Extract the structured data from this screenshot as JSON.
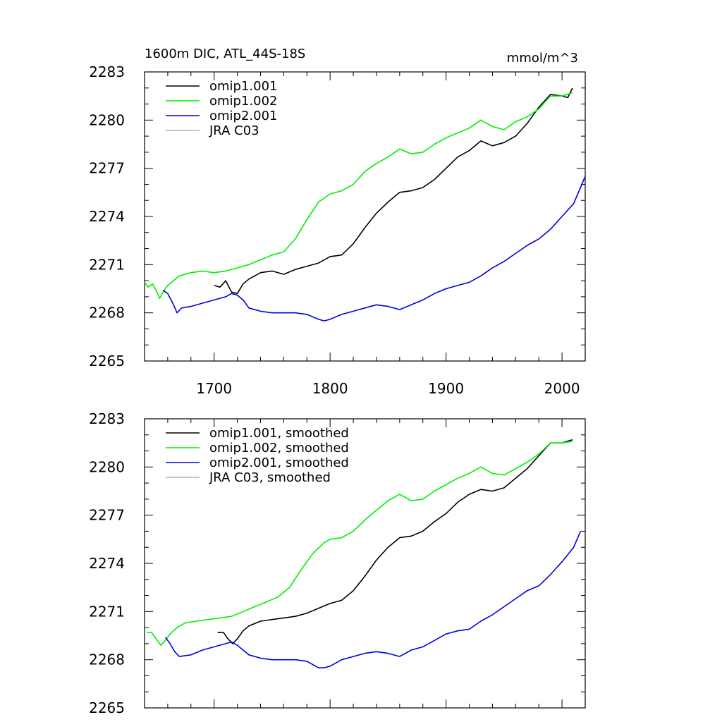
{
  "chart_data": [
    {
      "type": "line",
      "title": "1600m DIC, ATL_44S-18S",
      "units": "mmol/m^3",
      "xlim": [
        1640,
        2020
      ],
      "ylim": [
        2265,
        2283
      ],
      "xticks": [
        1700,
        1800,
        1900,
        2000
      ],
      "yticks": [
        2265,
        2268,
        2271,
        2274,
        2277,
        2280,
        2283
      ],
      "show_xtick_labels": true,
      "legend_position": "top-left",
      "series": [
        {
          "name": "omip1.001",
          "color": "#000000",
          "x": [
            1700,
            1705,
            1710,
            1715,
            1720,
            1725,
            1730,
            1740,
            1750,
            1760,
            1770,
            1780,
            1790,
            1800,
            1810,
            1820,
            1830,
            1840,
            1850,
            1860,
            1870,
            1880,
            1890,
            1900,
            1910,
            1920,
            1930,
            1940,
            1950,
            1960,
            1970,
            1980,
            1990,
            2000,
            2005,
            2009
          ],
          "y": [
            2269.7,
            2269.6,
            2270.0,
            2269.3,
            2269.2,
            2269.8,
            2270.1,
            2270.5,
            2270.6,
            2270.4,
            2270.7,
            2270.9,
            2271.1,
            2271.5,
            2271.6,
            2272.3,
            2273.3,
            2274.2,
            2274.9,
            2275.5,
            2275.6,
            2275.8,
            2276.3,
            2277.0,
            2277.7,
            2278.1,
            2278.7,
            2278.4,
            2278.6,
            2279.0,
            2279.8,
            2280.8,
            2281.6,
            2281.5,
            2281.4,
            2282.0
          ]
        },
        {
          "name": "omip1.002",
          "color": "#00ee00",
          "x": [
            1640,
            1643,
            1647,
            1650,
            1653,
            1656,
            1660,
            1665,
            1670,
            1680,
            1690,
            1700,
            1710,
            1720,
            1730,
            1740,
            1750,
            1760,
            1770,
            1780,
            1790,
            1800,
            1810,
            1820,
            1830,
            1840,
            1850,
            1860,
            1870,
            1880,
            1890,
            1900,
            1910,
            1920,
            1930,
            1940,
            1950,
            1960,
            1970,
            1980,
            1990,
            2000,
            2009
          ],
          "y": [
            2269.9,
            2269.6,
            2269.8,
            2269.4,
            2268.9,
            2269.3,
            2269.7,
            2270.0,
            2270.3,
            2270.5,
            2270.6,
            2270.5,
            2270.6,
            2270.8,
            2271.0,
            2271.3,
            2271.6,
            2271.8,
            2272.6,
            2273.8,
            2274.9,
            2275.4,
            2275.6,
            2276.0,
            2276.8,
            2277.3,
            2277.7,
            2278.2,
            2277.9,
            2278.0,
            2278.5,
            2278.9,
            2279.2,
            2279.5,
            2280.0,
            2279.6,
            2279.4,
            2279.9,
            2280.2,
            2280.7,
            2281.5,
            2281.5,
            2281.7
          ]
        },
        {
          "name": "omip2.001",
          "color": "#0000dd",
          "x": [
            1656,
            1660,
            1665,
            1668,
            1672,
            1680,
            1690,
            1700,
            1710,
            1715,
            1720,
            1725,
            1730,
            1740,
            1750,
            1760,
            1770,
            1780,
            1790,
            1795,
            1800,
            1810,
            1820,
            1830,
            1840,
            1850,
            1860,
            1870,
            1880,
            1890,
            1900,
            1910,
            1920,
            1930,
            1940,
            1950,
            1960,
            1970,
            1980,
            1990,
            2000,
            2010,
            2020
          ],
          "y": [
            2269.4,
            2269.2,
            2268.5,
            2268.0,
            2268.3,
            2268.4,
            2268.6,
            2268.8,
            2269.0,
            2269.2,
            2269.1,
            2268.8,
            2268.3,
            2268.1,
            2268.0,
            2268.0,
            2268.0,
            2267.9,
            2267.6,
            2267.5,
            2267.6,
            2267.9,
            2268.1,
            2268.3,
            2268.5,
            2268.4,
            2268.2,
            2268.5,
            2268.8,
            2269.2,
            2269.5,
            2269.7,
            2269.9,
            2270.3,
            2270.8,
            2271.2,
            2271.7,
            2272.2,
            2272.6,
            2273.2,
            2274.0,
            2274.8,
            2276.5
          ]
        },
        {
          "name": "JRA C03",
          "color": "#b0b0b0",
          "x": [],
          "y": []
        }
      ]
    },
    {
      "type": "line",
      "title": "",
      "units": "",
      "xlim": [
        1640,
        2020
      ],
      "ylim": [
        2265,
        2283
      ],
      "xticks": [
        1700,
        1800,
        1900,
        2000
      ],
      "yticks": [
        2265,
        2268,
        2271,
        2274,
        2277,
        2280,
        2283
      ],
      "show_xtick_labels": false,
      "legend_position": "top-left",
      "series": [
        {
          "name": "omip1.001, smoothed",
          "color": "#000000",
          "x": [
            1703,
            1708,
            1712,
            1716,
            1720,
            1725,
            1730,
            1740,
            1750,
            1760,
            1770,
            1780,
            1790,
            1800,
            1810,
            1820,
            1830,
            1840,
            1850,
            1860,
            1870,
            1880,
            1890,
            1900,
            1910,
            1920,
            1930,
            1940,
            1950,
            1960,
            1970,
            1980,
            1990,
            2000,
            2009
          ],
          "y": [
            2269.7,
            2269.7,
            2269.3,
            2269.0,
            2269.3,
            2269.8,
            2270.1,
            2270.4,
            2270.5,
            2270.6,
            2270.7,
            2270.9,
            2271.2,
            2271.5,
            2271.7,
            2272.3,
            2273.2,
            2274.2,
            2275.0,
            2275.6,
            2275.7,
            2276.0,
            2276.6,
            2277.1,
            2277.8,
            2278.3,
            2278.6,
            2278.5,
            2278.7,
            2279.3,
            2279.9,
            2280.7,
            2281.5,
            2281.5,
            2281.7
          ]
        },
        {
          "name": "omip1.002, smoothed",
          "color": "#00ee00",
          "x": [
            1642,
            1646,
            1650,
            1654,
            1658,
            1662,
            1668,
            1675,
            1685,
            1695,
            1705,
            1715,
            1725,
            1735,
            1745,
            1755,
            1765,
            1775,
            1785,
            1795,
            1800,
            1810,
            1820,
            1830,
            1840,
            1850,
            1860,
            1865,
            1870,
            1880,
            1890,
            1900,
            1910,
            1920,
            1930,
            1940,
            1950,
            1960,
            1970,
            1980,
            1990,
            2000,
            2009
          ],
          "y": [
            2269.7,
            2269.7,
            2269.3,
            2268.9,
            2269.2,
            2269.6,
            2270.0,
            2270.3,
            2270.4,
            2270.5,
            2270.6,
            2270.7,
            2271.0,
            2271.3,
            2271.6,
            2271.9,
            2272.5,
            2273.6,
            2274.6,
            2275.3,
            2275.5,
            2275.6,
            2276.0,
            2276.7,
            2277.3,
            2277.9,
            2278.3,
            2278.1,
            2277.9,
            2278.0,
            2278.5,
            2278.9,
            2279.3,
            2279.6,
            2280.0,
            2279.6,
            2279.5,
            2279.9,
            2280.3,
            2280.8,
            2281.5,
            2281.5,
            2281.6
          ]
        },
        {
          "name": "omip2.001, smoothed",
          "color": "#0000dd",
          "x": [
            1658,
            1662,
            1666,
            1670,
            1680,
            1690,
            1700,
            1710,
            1715,
            1720,
            1725,
            1730,
            1740,
            1750,
            1760,
            1770,
            1780,
            1790,
            1795,
            1800,
            1810,
            1820,
            1830,
            1840,
            1850,
            1860,
            1870,
            1880,
            1890,
            1900,
            1910,
            1920,
            1930,
            1940,
            1950,
            1960,
            1970,
            1980,
            1990,
            2000,
            2010,
            2016
          ],
          "y": [
            2269.4,
            2269.0,
            2268.5,
            2268.2,
            2268.3,
            2268.6,
            2268.8,
            2269.0,
            2269.1,
            2268.9,
            2268.6,
            2268.3,
            2268.1,
            2268.0,
            2268.0,
            2268.0,
            2267.9,
            2267.5,
            2267.5,
            2267.6,
            2268.0,
            2268.2,
            2268.4,
            2268.5,
            2268.4,
            2268.2,
            2268.6,
            2268.8,
            2269.2,
            2269.6,
            2269.8,
            2269.9,
            2270.4,
            2270.8,
            2271.3,
            2271.8,
            2272.3,
            2272.6,
            2273.3,
            2274.1,
            2275.0,
            2276.0
          ]
        },
        {
          "name": "JRA C03, smoothed",
          "color": "#b0b0b0",
          "x": [],
          "y": []
        }
      ]
    }
  ]
}
